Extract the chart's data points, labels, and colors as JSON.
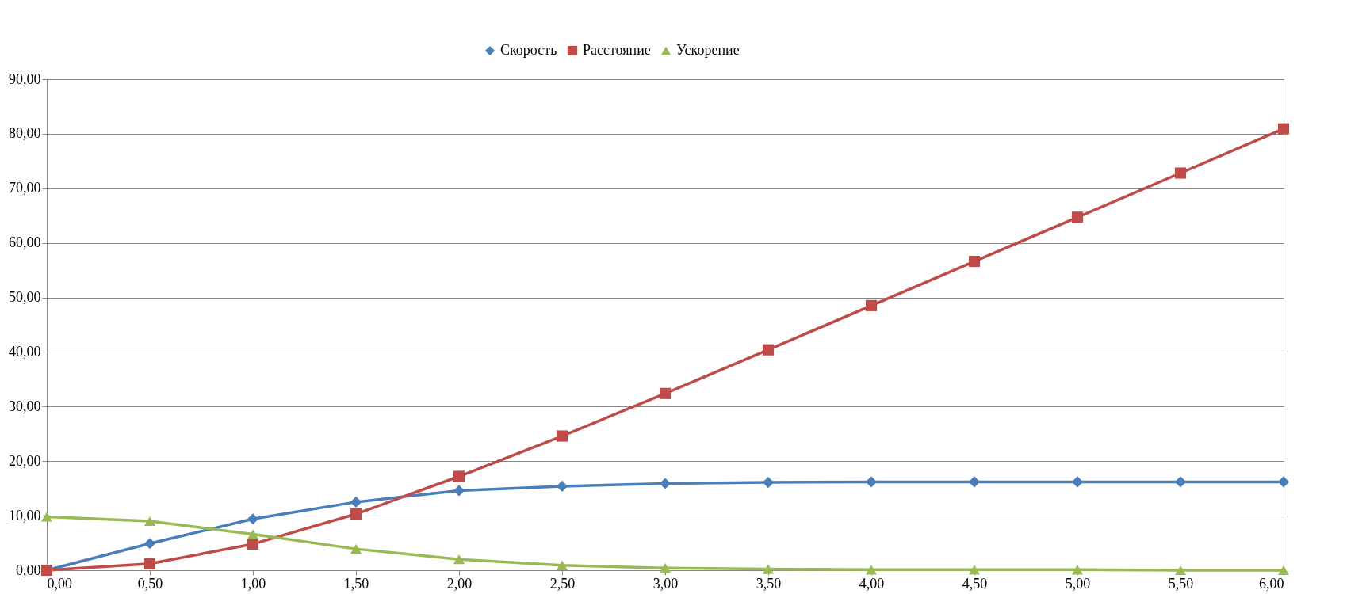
{
  "chart_data": {
    "type": "line",
    "x": [
      0,
      0.5,
      1,
      1.5,
      2,
      2.5,
      3,
      3.5,
      4,
      4.5,
      5,
      5.5,
      6
    ],
    "series": [
      {
        "name": "Скорость",
        "color": "#4a7ebb",
        "marker": "diamond",
        "values": [
          0,
          4.9,
          9.4,
          12.5,
          14.6,
          15.4,
          15.9,
          16.1,
          16.2,
          16.2,
          16.2,
          16.2,
          16.2
        ]
      },
      {
        "name": "Расстояние",
        "color": "#be4b48",
        "marker": "square",
        "values": [
          0,
          1.2,
          4.8,
          10.3,
          17.2,
          24.6,
          32.4,
          40.4,
          48.5,
          56.6,
          64.7,
          72.8,
          80.9
        ]
      },
      {
        "name": "Ускорение",
        "color": "#98b954",
        "marker": "triangle",
        "values": [
          9.8,
          9.0,
          6.6,
          3.9,
          2.0,
          0.9,
          0.4,
          0.2,
          0.1,
          0.1,
          0.1,
          0.0,
          0.0
        ]
      }
    ],
    "xlim": [
      0,
      6
    ],
    "xticks": [
      {
        "value": 0,
        "label": "0,00"
      },
      {
        "value": 0.5,
        "label": "0,50"
      },
      {
        "value": 1,
        "label": "1,00"
      },
      {
        "value": 1.5,
        "label": "1,50"
      },
      {
        "value": 2,
        "label": "2,00"
      },
      {
        "value": 2.5,
        "label": "2,50"
      },
      {
        "value": 3,
        "label": "3,00"
      },
      {
        "value": 3.5,
        "label": "3,50"
      },
      {
        "value": 4,
        "label": "4,00"
      },
      {
        "value": 4.5,
        "label": "4,50"
      },
      {
        "value": 5,
        "label": "5,00"
      },
      {
        "value": 5.5,
        "label": "5,50"
      },
      {
        "value": 6,
        "label": "6,00"
      }
    ],
    "ylim": [
      0,
      90
    ],
    "yticks": [
      {
        "value": 0,
        "label": "0,00"
      },
      {
        "value": 10,
        "label": "10,00"
      },
      {
        "value": 20,
        "label": "20,00"
      },
      {
        "value": 30,
        "label": "30,00"
      },
      {
        "value": 40,
        "label": "40,00"
      },
      {
        "value": 50,
        "label": "50,00"
      },
      {
        "value": 60,
        "label": "60,00"
      },
      {
        "value": 70,
        "label": "70,00"
      },
      {
        "value": 80,
        "label": "80,00"
      },
      {
        "value": 90,
        "label": "90,00"
      }
    ],
    "grid": "y",
    "legend": "top",
    "line_style": "solid"
  }
}
